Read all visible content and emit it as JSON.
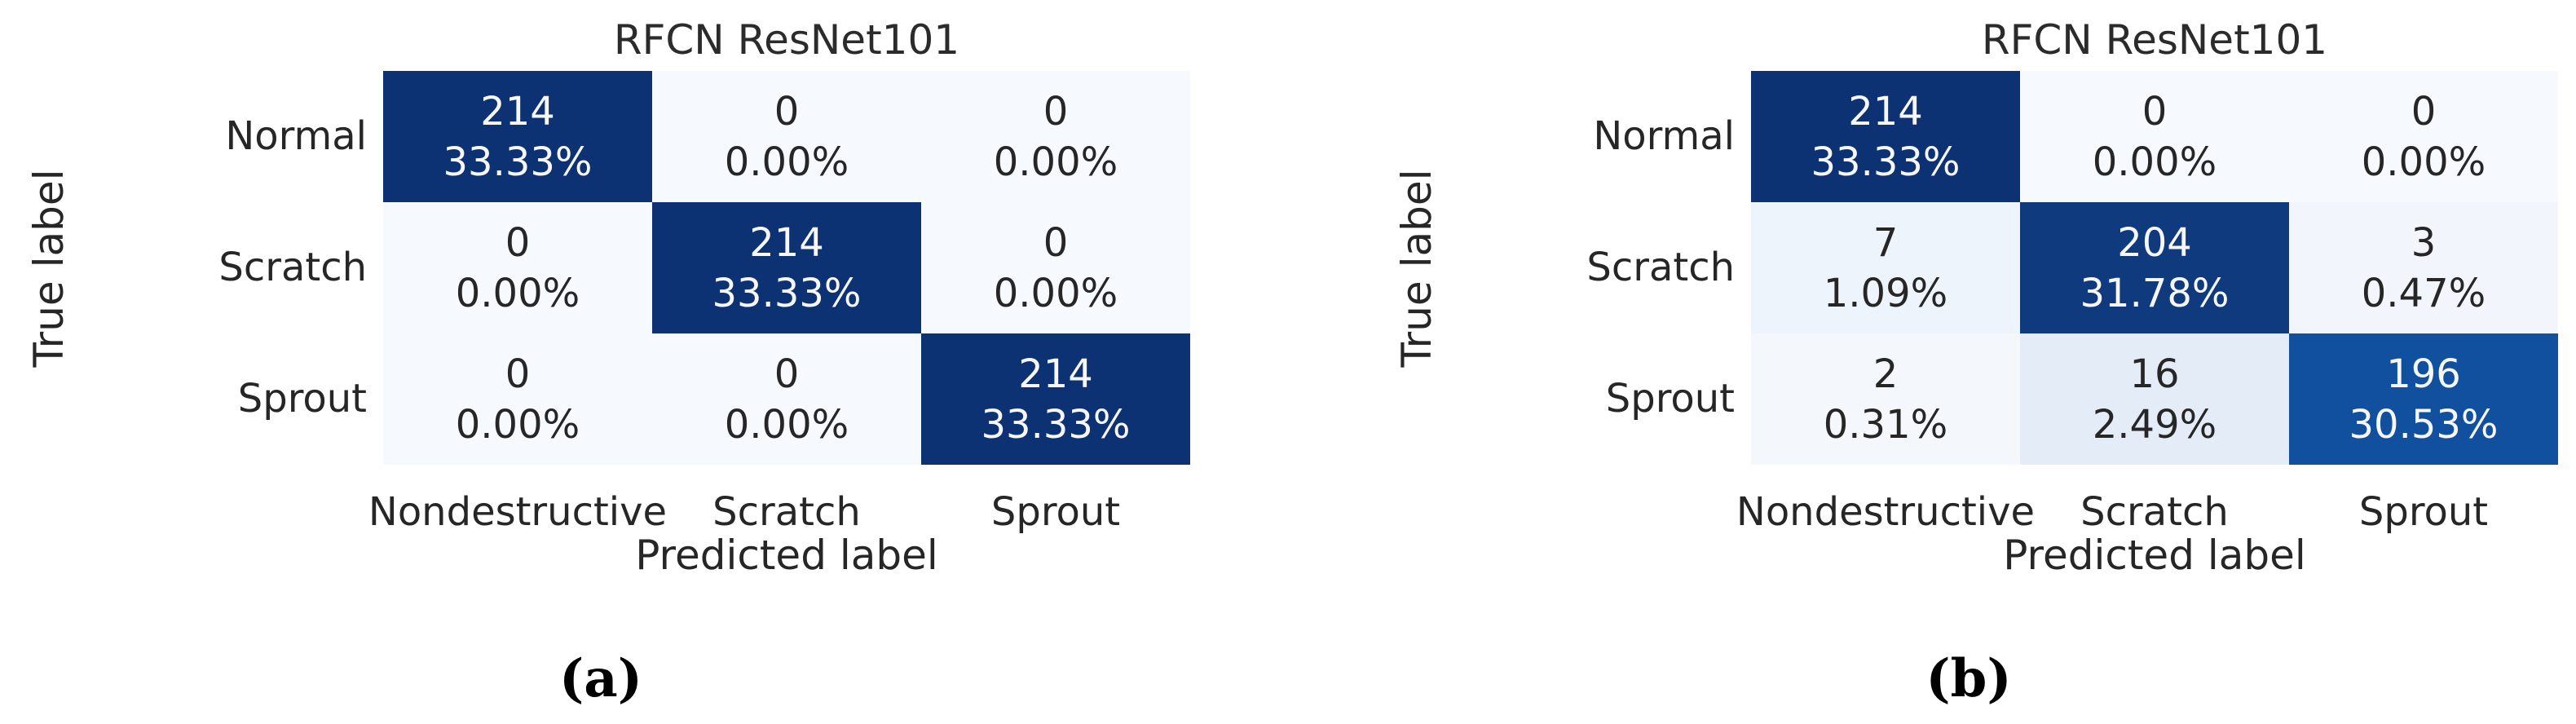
{
  "panels": [
    {
      "caption": "(a)",
      "title": "RFCN ResNet101",
      "xlabel": "Predicted label",
      "ylabel": "True label",
      "row_labels": [
        "Normal",
        "Scratch",
        "Sprout"
      ],
      "col_labels": [
        "Nondestructive",
        "Scratch",
        "Sprout"
      ],
      "cells": [
        [
          {
            "count": "214",
            "pct": "33.33%",
            "bg": "#0d3274",
            "fg": "#f7f7f7"
          },
          {
            "count": "0",
            "pct": "0.00%",
            "bg": "#f6f9fe",
            "fg": "#262626"
          },
          {
            "count": "0",
            "pct": "0.00%",
            "bg": "#f6f9fe",
            "fg": "#262626"
          }
        ],
        [
          {
            "count": "0",
            "pct": "0.00%",
            "bg": "#f6f9fe",
            "fg": "#262626"
          },
          {
            "count": "214",
            "pct": "33.33%",
            "bg": "#0d3274",
            "fg": "#f7f7f7"
          },
          {
            "count": "0",
            "pct": "0.00%",
            "bg": "#f6f9fe",
            "fg": "#262626"
          }
        ],
        [
          {
            "count": "0",
            "pct": "0.00%",
            "bg": "#f6f9fe",
            "fg": "#262626"
          },
          {
            "count": "0",
            "pct": "0.00%",
            "bg": "#f6f9fe",
            "fg": "#262626"
          },
          {
            "count": "214",
            "pct": "33.33%",
            "bg": "#0d3274",
            "fg": "#f7f7f7"
          }
        ]
      ]
    },
    {
      "caption": "(b)",
      "title": "RFCN ResNet101",
      "xlabel": "Predicted label",
      "ylabel": "True label",
      "row_labels": [
        "Normal",
        "Scratch",
        "Sprout"
      ],
      "col_labels": [
        "Nondestructive",
        "Scratch",
        "Sprout"
      ],
      "cells": [
        [
          {
            "count": "214",
            "pct": "33.33%",
            "bg": "#0d3274",
            "fg": "#f7f7f7"
          },
          {
            "count": "0",
            "pct": "0.00%",
            "bg": "#f6f9fe",
            "fg": "#262626"
          },
          {
            "count": "0",
            "pct": "0.00%",
            "bg": "#f6f9fe",
            "fg": "#262626"
          }
        ],
        [
          {
            "count": "7",
            "pct": "1.09%",
            "bg": "#eef4fb",
            "fg": "#262626"
          },
          {
            "count": "204",
            "pct": "31.78%",
            "bg": "#0f3a7e",
            "fg": "#f7f7f7"
          },
          {
            "count": "3",
            "pct": "0.47%",
            "bg": "#f2f6fc",
            "fg": "#262626"
          }
        ],
        [
          {
            "count": "2",
            "pct": "0.31%",
            "bg": "#f4f8fd",
            "fg": "#262626"
          },
          {
            "count": "16",
            "pct": "2.49%",
            "bg": "#e4ecf7",
            "fg": "#262626"
          },
          {
            "count": "196",
            "pct": "30.53%",
            "bg": "#11509e",
            "fg": "#f7f7f7"
          }
        ]
      ]
    }
  ],
  "chart_data": [
    {
      "type": "heatmap",
      "title": "RFCN ResNet101",
      "xlabel": "Predicted label",
      "ylabel": "True label",
      "x_categories": [
        "Nondestructive",
        "Scratch",
        "Sprout"
      ],
      "y_categories": [
        "Normal",
        "Scratch",
        "Sprout"
      ],
      "counts": [
        [
          214,
          0,
          0
        ],
        [
          0,
          214,
          0
        ],
        [
          0,
          0,
          214
        ]
      ],
      "percentages": [
        [
          33.33,
          0.0,
          0.0
        ],
        [
          0.0,
          33.33,
          0.0
        ],
        [
          0.0,
          0.0,
          33.33
        ]
      ],
      "colormap": "Blues",
      "legend": "none",
      "grid": "off",
      "subfigure_caption": "(a)"
    },
    {
      "type": "heatmap",
      "title": "RFCN ResNet101",
      "xlabel": "Predicted label",
      "ylabel": "True label",
      "x_categories": [
        "Nondestructive",
        "Scratch",
        "Sprout"
      ],
      "y_categories": [
        "Normal",
        "Scratch",
        "Sprout"
      ],
      "counts": [
        [
          214,
          0,
          0
        ],
        [
          7,
          204,
          3
        ],
        [
          2,
          16,
          196
        ]
      ],
      "percentages": [
        [
          33.33,
          0.0,
          0.0
        ],
        [
          1.09,
          31.78,
          0.47
        ],
        [
          0.31,
          2.49,
          30.53
        ]
      ],
      "colormap": "Blues",
      "legend": "none",
      "grid": "off",
      "subfigure_caption": "(b)"
    }
  ]
}
